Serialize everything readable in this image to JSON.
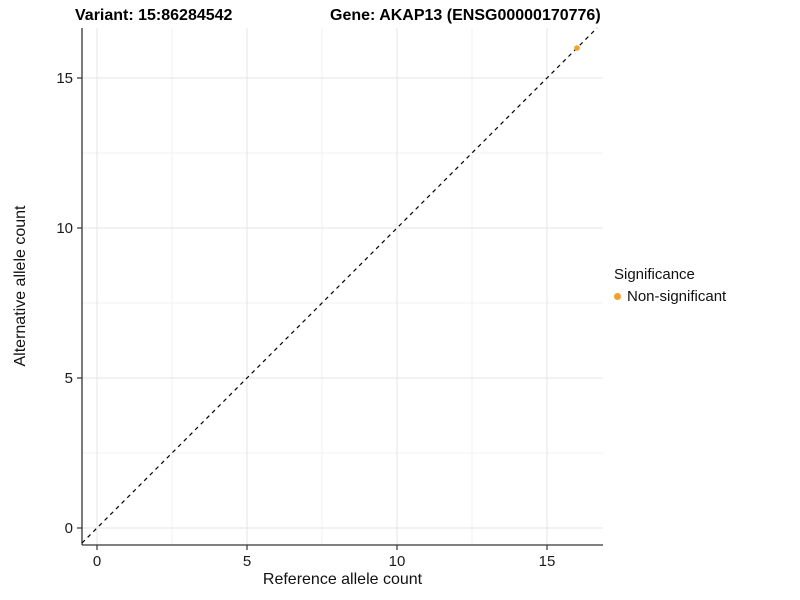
{
  "header": {
    "variant_title": "Variant: 15:86284542",
    "gene_title": "Gene: AKAP13 (ENSG00000170776)"
  },
  "axes": {
    "x_label": "Reference allele count",
    "y_label": "Alternative allele count"
  },
  "legend": {
    "title": "Significance",
    "items": [
      {
        "label": "Non-significant",
        "color": "#F9A023"
      }
    ]
  },
  "colors": {
    "axis": "#343434",
    "tick_text": "#1a1a1a",
    "grid_major": "#e4e4e4",
    "grid_minor": "#f0f0f0",
    "identity_line": "#000000",
    "background": "#ffffff"
  },
  "chart_data": {
    "type": "scatter",
    "title": "Variant: 15:86284542",
    "subtitle": "Gene: AKAP13 (ENSG00000170776)",
    "xlabel": "Reference allele count",
    "ylabel": "Alternative allele count",
    "x_ticks": [
      0,
      5,
      10,
      15
    ],
    "y_ticks": [
      0,
      5,
      10,
      15
    ],
    "xlim": [
      -0.5,
      16.87
    ],
    "ylim": [
      -0.57,
      16.67
    ],
    "grid": "major+minor",
    "legend_position": "right",
    "legend_title": "Significance",
    "series": [
      {
        "name": "Non-significant",
        "color": "#F9A023",
        "points": [
          {
            "x": 16,
            "y": 16
          }
        ]
      }
    ],
    "reference_line": {
      "kind": "identity",
      "dash": true,
      "color": "#000000"
    }
  }
}
